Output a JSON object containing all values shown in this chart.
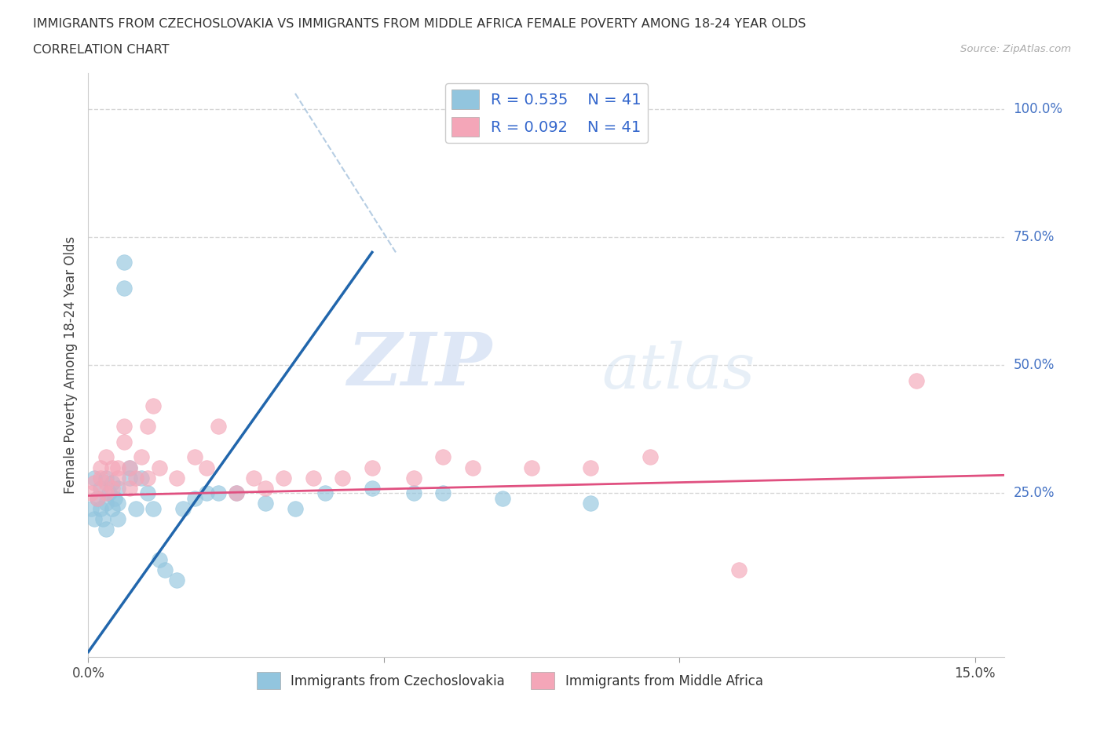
{
  "title_line1": "IMMIGRANTS FROM CZECHOSLOVAKIA VS IMMIGRANTS FROM MIDDLE AFRICA FEMALE POVERTY AMONG 18-24 YEAR OLDS",
  "title_line2": "CORRELATION CHART",
  "source": "Source: ZipAtlas.com",
  "ylabel": "Female Poverty Among 18-24 Year Olds",
  "xlim": [
    0.0,
    0.155
  ],
  "ylim": [
    -0.07,
    1.07
  ],
  "color_blue": "#92c5de",
  "color_pink": "#f4a6b8",
  "color_blue_line": "#2166ac",
  "color_pink_line": "#e05080",
  "color_dashed": "#aec8e0",
  "watermark_zip": "ZIP",
  "watermark_atlas": "atlas",
  "legend_R1": "R = 0.535",
  "legend_N1": "N = 41",
  "legend_R2": "R = 0.092",
  "legend_N2": "N = 41",
  "background_color": "#ffffff",
  "blue_x": [
    0.0005,
    0.001,
    0.001,
    0.0015,
    0.002,
    0.002,
    0.0025,
    0.003,
    0.003,
    0.003,
    0.0035,
    0.004,
    0.004,
    0.0045,
    0.005,
    0.005,
    0.005,
    0.006,
    0.006,
    0.007,
    0.007,
    0.008,
    0.009,
    0.01,
    0.011,
    0.012,
    0.013,
    0.015,
    0.016,
    0.018,
    0.02,
    0.022,
    0.025,
    0.03,
    0.035,
    0.04,
    0.048,
    0.055,
    0.06,
    0.07,
    0.085
  ],
  "blue_y": [
    0.22,
    0.2,
    0.28,
    0.24,
    0.22,
    0.26,
    0.2,
    0.23,
    0.28,
    0.18,
    0.25,
    0.22,
    0.27,
    0.24,
    0.2,
    0.23,
    0.26,
    0.65,
    0.7,
    0.28,
    0.3,
    0.22,
    0.28,
    0.25,
    0.22,
    0.12,
    0.1,
    0.08,
    0.22,
    0.24,
    0.25,
    0.25,
    0.25,
    0.23,
    0.22,
    0.25,
    0.26,
    0.25,
    0.25,
    0.24,
    0.23
  ],
  "pink_x": [
    0.0005,
    0.001,
    0.0015,
    0.002,
    0.002,
    0.003,
    0.003,
    0.003,
    0.004,
    0.004,
    0.005,
    0.005,
    0.006,
    0.006,
    0.007,
    0.007,
    0.008,
    0.009,
    0.01,
    0.01,
    0.011,
    0.012,
    0.015,
    0.018,
    0.02,
    0.022,
    0.025,
    0.028,
    0.03,
    0.033,
    0.038,
    0.043,
    0.048,
    0.055,
    0.06,
    0.065,
    0.075,
    0.085,
    0.095,
    0.11,
    0.14
  ],
  "pink_y": [
    0.25,
    0.27,
    0.24,
    0.28,
    0.3,
    0.32,
    0.27,
    0.25,
    0.3,
    0.26,
    0.28,
    0.3,
    0.35,
    0.38,
    0.26,
    0.3,
    0.28,
    0.32,
    0.38,
    0.28,
    0.42,
    0.3,
    0.28,
    0.32,
    0.3,
    0.38,
    0.25,
    0.28,
    0.26,
    0.28,
    0.28,
    0.28,
    0.3,
    0.28,
    0.32,
    0.3,
    0.3,
    0.3,
    0.32,
    0.1,
    0.47
  ],
  "blue_line_x0": 0.0,
  "blue_line_y0": -0.06,
  "blue_line_x1": 0.048,
  "blue_line_y1": 0.72,
  "pink_line_x0": 0.0,
  "pink_line_y0": 0.245,
  "pink_line_x1": 0.155,
  "pink_line_y1": 0.285,
  "dash_line_x0": 0.035,
  "dash_line_y0": 1.03,
  "dash_line_x1": 0.052,
  "dash_line_y1": 0.72
}
